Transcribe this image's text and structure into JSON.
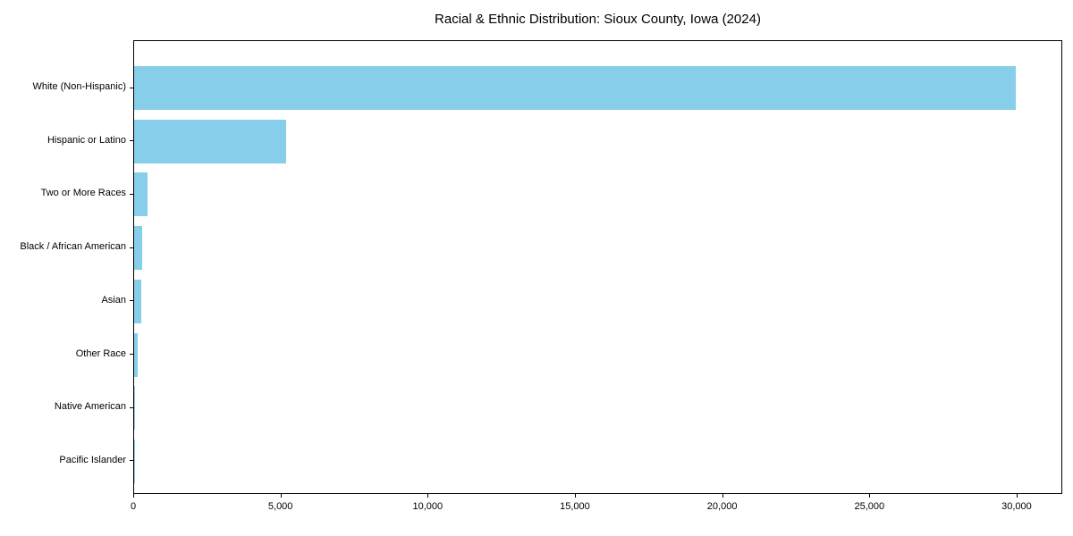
{
  "chart_data": {
    "type": "bar",
    "orientation": "horizontal",
    "title": "Racial & Ethnic Distribution: Sioux County, Iowa (2024)",
    "xlabel": "",
    "ylabel": "",
    "categories": [
      "White (Non-Hispanic)",
      "Hispanic or Latino",
      "Two or More Races",
      "Black / African American",
      "Asian",
      "Other Race",
      "Native American",
      "Pacific Islander"
    ],
    "values": [
      30000,
      5160,
      460,
      280,
      250,
      115,
      35,
      10
    ],
    "xlim": [
      0,
      31550
    ],
    "x_ticks": [
      0,
      5000,
      10000,
      15000,
      20000,
      25000,
      30000
    ],
    "x_tick_labels": [
      "0",
      "5,000",
      "10,000",
      "15,000",
      "20,000",
      "25,000",
      "30,000"
    ],
    "bar_color": "#87ceeb",
    "axis_color": "#000000",
    "background_color": "#ffffff",
    "grid": false,
    "legend": null
  }
}
